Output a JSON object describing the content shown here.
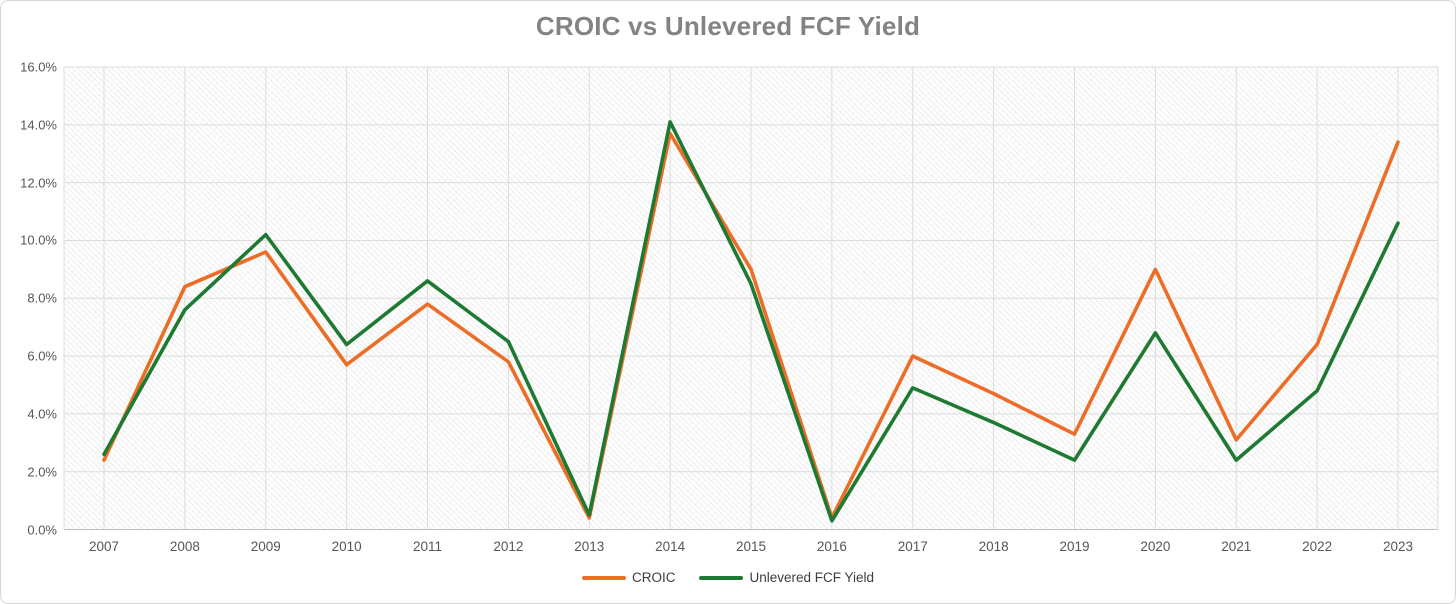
{
  "title": "CROIC vs Unlevered FCF Yield",
  "chart_data": {
    "type": "line",
    "title": "CROIC vs Unlevered FCF Yield",
    "xlabel": "",
    "ylabel": "",
    "grid": true,
    "legend_position": "bottom",
    "plot_background": "diagonal-hatch",
    "ylim": [
      0,
      16
    ],
    "y_ticks": [
      {
        "label": "16.0%",
        "value": 16
      },
      {
        "label": "14.0%",
        "value": 14
      },
      {
        "label": "12.0%",
        "value": 12
      },
      {
        "label": "10.0%",
        "value": 10
      },
      {
        "label": "8.0%",
        "value": 8
      },
      {
        "label": "6.0%",
        "value": 6
      },
      {
        "label": "4.0%",
        "value": 4
      },
      {
        "label": "2.0%",
        "value": 2
      },
      {
        "label": "0.0%",
        "value": 0
      }
    ],
    "categories": [
      "2007",
      "2008",
      "2009",
      "2010",
      "2011",
      "2012",
      "2013",
      "2014",
      "2015",
      "2016",
      "2017",
      "2018",
      "2019",
      "2020",
      "2021",
      "2022",
      "2023"
    ],
    "series": [
      {
        "name": "CROIC",
        "color": "#EC6E26",
        "values": [
          2.4,
          8.4,
          9.6,
          5.7,
          7.8,
          5.8,
          0.4,
          13.7,
          9.0,
          0.4,
          6.0,
          4.7,
          3.3,
          9.0,
          3.1,
          6.4,
          13.4
        ]
      },
      {
        "name": "Unlevered FCF Yield",
        "color": "#1E7A32",
        "values": [
          2.6,
          7.6,
          10.2,
          6.4,
          8.6,
          6.5,
          0.5,
          14.1,
          8.5,
          0.3,
          4.9,
          3.7,
          2.4,
          6.8,
          2.4,
          4.8,
          10.6
        ]
      }
    ],
    "colors": {
      "gridline": "#DCDCDC",
      "axis_line": "#BFBFBF",
      "title_text": "#838383",
      "tick_text": "#565656",
      "legend_text": "#3D3D3D"
    }
  }
}
